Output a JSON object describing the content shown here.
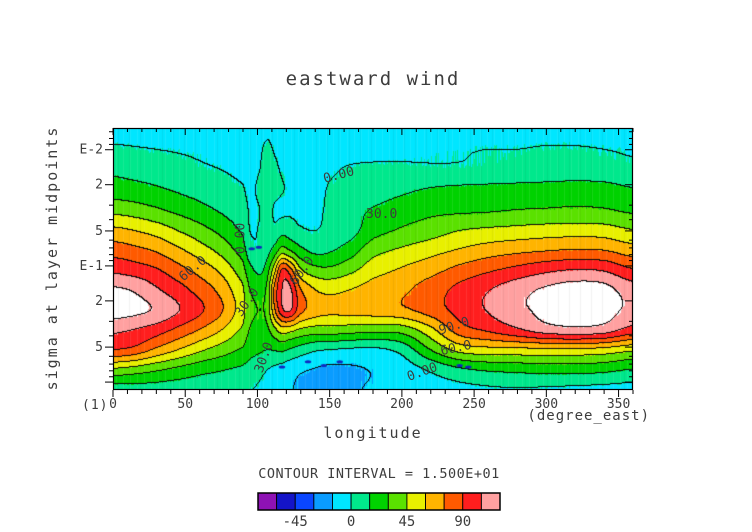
{
  "chart_data": {
    "type": "contour",
    "title": "eastward wind",
    "xlabel": "longitude",
    "x_unit": "(degree_east)",
    "axis_index_label": "(1)",
    "ylabel": "sigma at layer midpoints",
    "xlim": [
      0,
      360
    ],
    "x_major_ticks": [
      0,
      50,
      100,
      150,
      200,
      250,
      300,
      350
    ],
    "x_minor_step": 10,
    "y_scale": "log",
    "ylim": [
      0.0065,
      1.17
    ],
    "y_ticks": [
      {
        "v": 0.01,
        "label": "E-2"
      },
      {
        "v": 0.02,
        "label": "2"
      },
      {
        "v": 0.05,
        "label": "5"
      },
      {
        "v": 0.1,
        "label": "E-1"
      },
      {
        "v": 0.2,
        "label": "2"
      },
      {
        "v": 0.5,
        "label": "5"
      }
    ],
    "contour_interval": 15,
    "contour_levels_range": [
      -75,
      120
    ],
    "colorbar": {
      "title": "CONTOUR INTERVAL = 1.500E+01",
      "min": -75,
      "max": 120,
      "labels": [
        "-45",
        "0",
        "45",
        "90"
      ],
      "label_values": [
        -45,
        0,
        45,
        90
      ],
      "colors": [
        "#8e12b4",
        "#1414c8",
        "#0a46ff",
        "#0a9cff",
        "#00e6ff",
        "#00e88c",
        "#00d200",
        "#5ae100",
        "#e8f000",
        "#ffb400",
        "#ff5a00",
        "#ff1e1e",
        "#ffa0a0"
      ],
      "over_color": "#ffffff"
    },
    "contour_labels": [
      {
        "text": "0.00",
        "lon": 91,
        "sigma": 0.058,
        "angle": -90
      },
      {
        "text": "0.00",
        "lon": 157,
        "sigma": 0.0178,
        "angle": -15
      },
      {
        "text": "30.0",
        "lon": 186,
        "sigma": 0.0386,
        "angle": 0
      },
      {
        "text": "60.0",
        "lon": 57,
        "sigma": 0.112,
        "angle": -40
      },
      {
        "text": "30.0",
        "lon": 95,
        "sigma": 0.215,
        "angle": -55
      },
      {
        "text": "30.0",
        "lon": 107,
        "sigma": 0.63,
        "angle": -70
      },
      {
        "text": "60.0",
        "lon": 133,
        "sigma": 0.115,
        "angle": -55
      },
      {
        "text": "90.0",
        "lon": 237,
        "sigma": 0.355,
        "angle": -18
      },
      {
        "text": "60.0",
        "lon": 238,
        "sigma": 0.55,
        "angle": -12
      },
      {
        "text": "0.00",
        "lon": 215,
        "sigma": 0.88,
        "angle": -20
      }
    ],
    "grid": {
      "lons": [
        0,
        15,
        30,
        45,
        60,
        75,
        90,
        95,
        102,
        107,
        112,
        117,
        122,
        130,
        140,
        150,
        165,
        180,
        200,
        220,
        240,
        260,
        280,
        300,
        320,
        340,
        360
      ],
      "sigmas": [
        0.0065,
        0.01,
        0.015,
        0.022,
        0.033,
        0.05,
        0.075,
        0.11,
        0.16,
        0.24,
        0.36,
        0.53,
        0.79,
        1.17
      ],
      "values": [
        [
          -5,
          -5,
          -5,
          -6,
          -6,
          -6,
          -6,
          -6,
          -5,
          -3,
          -4,
          -5,
          -5,
          -6,
          -6,
          -7,
          -7,
          -8,
          -8,
          -7,
          -6,
          -6,
          -5,
          -5,
          -5,
          -4,
          -4
        ],
        [
          2,
          1,
          0,
          -1,
          -2,
          -3,
          -4,
          -4,
          -2,
          3,
          -1,
          -3,
          -4,
          -5,
          -5,
          -6,
          -6,
          -5,
          -4,
          -2,
          -1,
          0,
          0,
          1,
          1,
          0,
          -1
        ],
        [
          12,
          10,
          8,
          5,
          2,
          0,
          -2,
          -3,
          0,
          9,
          3,
          -1,
          -2,
          -3,
          -4,
          -2,
          2,
          3,
          3,
          2,
          2,
          3,
          4,
          5,
          6,
          5,
          3
        ],
        [
          22,
          20,
          17,
          13,
          9,
          5,
          1,
          -2,
          3,
          13,
          6,
          1,
          -1,
          -2,
          -3,
          1,
          6,
          8,
          12,
          16,
          18,
          19,
          20,
          21,
          22,
          21,
          16
        ],
        [
          40,
          37,
          32,
          26,
          20,
          13,
          6,
          -1,
          0,
          9,
          -2,
          -3,
          -2,
          -3,
          -2,
          2,
          10,
          16,
          22,
          26,
          27,
          28,
          30,
          31,
          32,
          31,
          27
        ],
        [
          64,
          60,
          54,
          45,
          36,
          26,
          13,
          0,
          1,
          7,
          4,
          10,
          8,
          2,
          0,
          4,
          10,
          24,
          32,
          38,
          45,
          48,
          50,
          52,
          53,
          52,
          46
        ],
        [
          84,
          80,
          74,
          64,
          53,
          41,
          24,
          6,
          2,
          10,
          22,
          38,
          32,
          20,
          12,
          14,
          24,
          40,
          48,
          55,
          62,
          68,
          72,
          75,
          77,
          76,
          68
        ],
        [
          102,
          98,
          92,
          81,
          70,
          57,
          37,
          20,
          12,
          24,
          55,
          92,
          85,
          48,
          36,
          34,
          42,
          54,
          62,
          70,
          80,
          88,
          95,
          102,
          106,
          104,
          92
        ],
        [
          122,
          118,
          107,
          96,
          84,
          70,
          48,
          30,
          26,
          34,
          78,
          104,
          110,
          76,
          60,
          56,
          60,
          66,
          72,
          82,
          94,
          104,
          114,
          122,
          127,
          125,
          112
        ],
        [
          127,
          124,
          118,
          106,
          93,
          77,
          52,
          34,
          30,
          35,
          72,
          100,
          108,
          80,
          68,
          64,
          66,
          68,
          72,
          82,
          95,
          106,
          116,
          124,
          128,
          126,
          116
        ],
        [
          108,
          104,
          97,
          86,
          74,
          60,
          42,
          29,
          26,
          27,
          40,
          52,
          50,
          42,
          38,
          38,
          36,
          34,
          36,
          55,
          82,
          92,
          102,
          112,
          115,
          112,
          98
        ],
        [
          90,
          85,
          72,
          60,
          48,
          38,
          28,
          21,
          17,
          15,
          16,
          18,
          14,
          8,
          2,
          0,
          -2,
          -3,
          5,
          30,
          50,
          55,
          56,
          57,
          57,
          55,
          48
        ],
        [
          42,
          38,
          32,
          26,
          20,
          16,
          12,
          8,
          4,
          0,
          -3,
          -6,
          -9,
          -13,
          -16,
          -18,
          -17,
          -14,
          -8,
          2,
          12,
          17,
          19,
          21,
          21,
          19,
          14
        ],
        [
          8,
          9,
          9,
          8,
          7,
          6,
          4,
          1,
          -2,
          -5,
          -8,
          -11,
          -14,
          -17,
          -19,
          -20,
          -17,
          -13,
          -9,
          -6,
          -4,
          -2,
          -1,
          -2,
          -3,
          -4,
          -5
        ]
      ]
    },
    "spots": {
      "color": "#1028c0",
      "points": [
        {
          "lon": 117,
          "sigma": 0.74
        },
        {
          "lon": 135,
          "sigma": 0.67
        },
        {
          "lon": 146,
          "sigma": 0.72
        },
        {
          "lon": 157,
          "sigma": 0.67
        },
        {
          "lon": 96,
          "sigma": 0.071
        },
        {
          "lon": 101,
          "sigma": 0.069
        },
        {
          "lon": 240,
          "sigma": 0.72
        },
        {
          "lon": 246,
          "sigma": 0.74
        }
      ]
    }
  },
  "styles": {
    "text_color": "#3d3d3d",
    "line_color": "#000000",
    "background": "#ffffff"
  }
}
